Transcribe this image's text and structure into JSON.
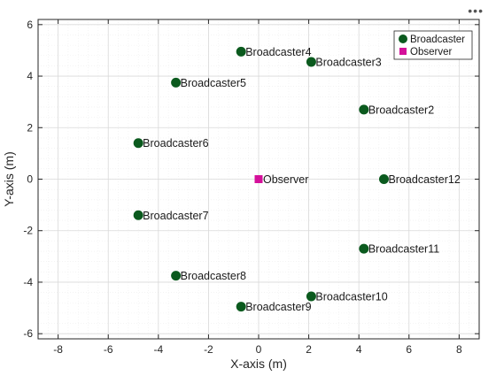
{
  "toolbar": {
    "menu_glyph": "•••"
  },
  "colors": {
    "broadcaster": "#0b5a1e",
    "observer": "#d4109a",
    "axis": "#262626",
    "grid_major": "#d9d9d9",
    "grid_minor": "#eeeeee"
  },
  "chart_data": {
    "type": "scatter",
    "title": "",
    "xlabel": "X-axis (m)",
    "ylabel": "Y-axis (m)",
    "xlim": [
      -8.8,
      8.8
    ],
    "ylim": [
      -6.2,
      6.2
    ],
    "xticks": [
      -8,
      -6,
      -4,
      -2,
      0,
      2,
      4,
      6,
      8
    ],
    "yticks": [
      -6,
      -4,
      -2,
      0,
      2,
      4,
      6
    ],
    "grid": true,
    "minor_grid": true,
    "legend": {
      "placement": "top-right",
      "entries": [
        "Broadcaster",
        "Observer"
      ]
    },
    "series": [
      {
        "name": "Broadcaster",
        "marker": "circle",
        "points": [
          {
            "x": 4.2,
            "y": 2.7,
            "label": "Broadcaster2"
          },
          {
            "x": 2.1,
            "y": 4.55,
            "label": "Broadcaster3"
          },
          {
            "x": -0.7,
            "y": 4.95,
            "label": "Broadcaster4"
          },
          {
            "x": -3.3,
            "y": 3.75,
            "label": "Broadcaster5"
          },
          {
            "x": -4.8,
            "y": 1.4,
            "label": "Broadcaster6"
          },
          {
            "x": -4.8,
            "y": -1.4,
            "label": "Broadcaster7"
          },
          {
            "x": -3.3,
            "y": -3.75,
            "label": "Broadcaster8"
          },
          {
            "x": -0.7,
            "y": -4.95,
            "label": "Broadcaster9"
          },
          {
            "x": 2.1,
            "y": -4.55,
            "label": "Broadcaster10"
          },
          {
            "x": 4.2,
            "y": -2.7,
            "label": "Broadcaster11"
          },
          {
            "x": 5.0,
            "y": 0.0,
            "label": "Broadcaster12"
          }
        ]
      },
      {
        "name": "Observer",
        "marker": "square",
        "points": [
          {
            "x": 0.0,
            "y": 0.0,
            "label": "Observer"
          }
        ]
      }
    ]
  }
}
